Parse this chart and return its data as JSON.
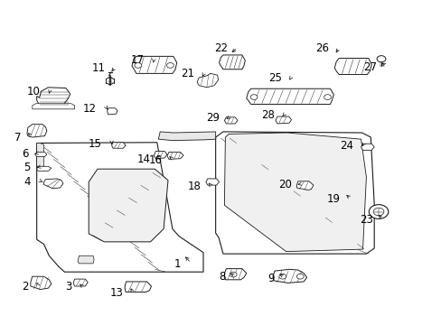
{
  "background_color": "#ffffff",
  "figure_width": 4.89,
  "figure_height": 3.6,
  "dpi": 100,
  "line_color": "#1a1a1a",
  "text_color": "#000000",
  "label_fontsize": 8.5,
  "lw": 0.6,
  "labels": {
    "1": [
      0.418,
      0.185,
      0.418,
      0.215
    ],
    "2": [
      0.077,
      0.118,
      0.088,
      0.135
    ],
    "3": [
      0.178,
      0.118,
      0.193,
      0.135
    ],
    "4": [
      0.082,
      0.44,
      0.108,
      0.44
    ],
    "5": [
      0.082,
      0.485,
      0.104,
      0.485
    ],
    "6": [
      0.077,
      0.528,
      0.098,
      0.528
    ],
    "7": [
      0.062,
      0.582,
      0.075,
      0.59
    ],
    "8": [
      0.525,
      0.148,
      0.525,
      0.168
    ],
    "9": [
      0.636,
      0.145,
      0.636,
      0.165
    ],
    "10": [
      0.102,
      0.72,
      0.114,
      0.703
    ],
    "11": [
      0.248,
      0.79,
      0.248,
      0.772
    ],
    "12": [
      0.238,
      0.668,
      0.258,
      0.668
    ],
    "13": [
      0.292,
      0.098,
      0.305,
      0.115
    ],
    "14": [
      0.352,
      0.508,
      0.352,
      0.522
    ],
    "15": [
      0.247,
      0.558,
      0.265,
      0.558
    ],
    "16": [
      0.382,
      0.506,
      0.382,
      0.522
    ],
    "17": [
      0.338,
      0.815,
      0.352,
      0.8
    ],
    "18": [
      0.468,
      0.428,
      0.474,
      0.442
    ],
    "19": [
      0.786,
      0.388,
      0.786,
      0.405
    ],
    "20": [
      0.678,
      0.432,
      0.695,
      0.432
    ],
    "21": [
      0.452,
      0.775,
      0.458,
      0.758
    ],
    "22": [
      0.528,
      0.852,
      0.528,
      0.835
    ],
    "23": [
      0.856,
      0.325,
      0.856,
      0.345
    ],
    "24": [
      0.812,
      0.552,
      0.832,
      0.552
    ],
    "25": [
      0.648,
      0.762,
      0.66,
      0.748
    ],
    "26": [
      0.756,
      0.852,
      0.756,
      0.832
    ],
    "27": [
      0.864,
      0.795,
      0.864,
      0.812
    ],
    "28": [
      0.634,
      0.645,
      0.645,
      0.635
    ],
    "29": [
      0.512,
      0.638,
      0.525,
      0.635
    ]
  }
}
